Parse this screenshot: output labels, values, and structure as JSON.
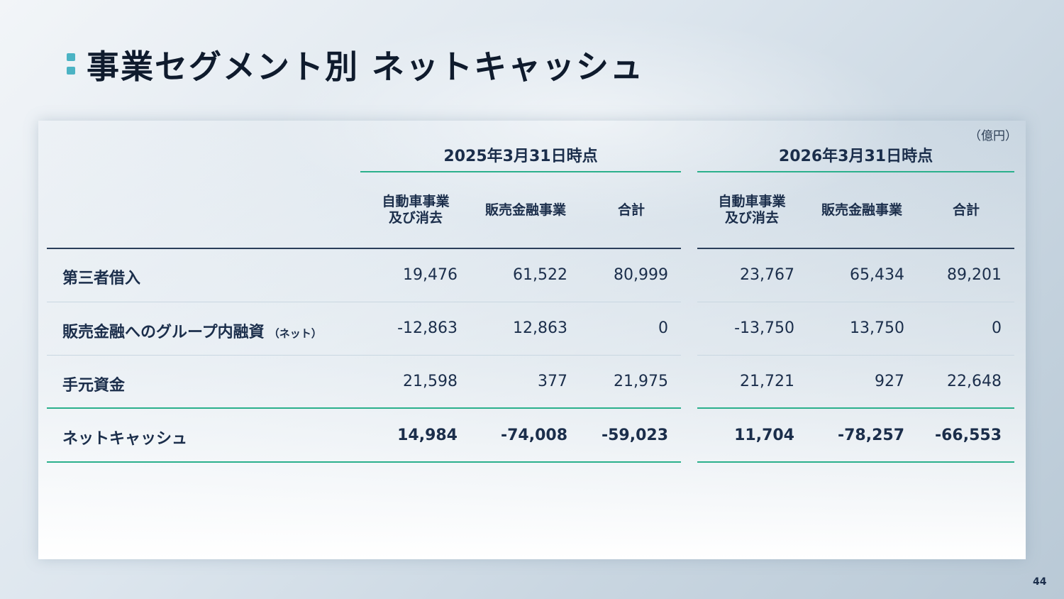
{
  "slide": {
    "title": "事業セグメント別 ネットキャッシュ",
    "unit": "（億円）",
    "page_number": "44"
  },
  "periods": [
    "2025年3月31日時点",
    "2026年3月31日時点"
  ],
  "columns": [
    "自動車事業\n及び消去",
    "販売金融事業",
    "合計"
  ],
  "rows": [
    {
      "label": "第三者借入",
      "note": "",
      "values": [
        "19,476",
        "61,522",
        "80,999",
        "23,767",
        "65,434",
        "89,201"
      ]
    },
    {
      "label": "販売金融へのグループ内融資",
      "note": "（ネット）",
      "values": [
        "-12,863",
        "12,863",
        "0",
        "-13,750",
        "13,750",
        "0"
      ]
    },
    {
      "label": "手元資金",
      "note": "",
      "values": [
        "21,598",
        "377",
        "21,975",
        "21,721",
        "927",
        "22,648"
      ]
    },
    {
      "label": "ネットキャッシュ",
      "note": "",
      "values": [
        "14,984",
        "-74,008",
        "-59,023",
        "11,704",
        "-78,257",
        "-66,553"
      ]
    }
  ],
  "colors": {
    "accent": "#4bb3c4",
    "rule": "#2bb08c",
    "text": "#1b2e4b"
  }
}
